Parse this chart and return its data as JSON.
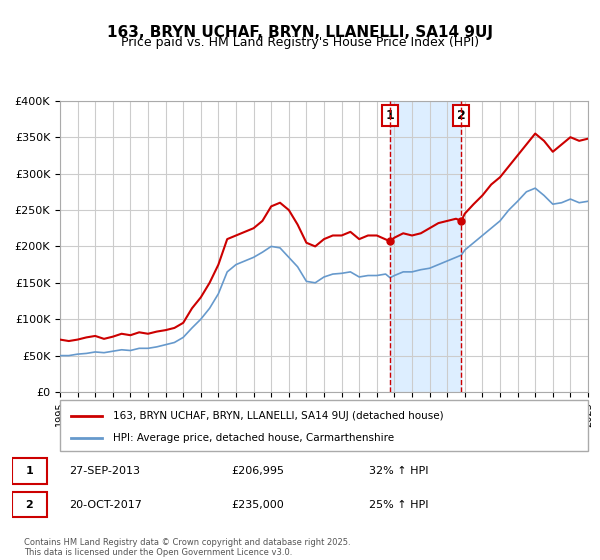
{
  "title": "163, BRYN UCHAF, BRYN, LLANELLI, SA14 9UJ",
  "subtitle": "Price paid vs. HM Land Registry's House Price Index (HPI)",
  "legend_label_red": "163, BRYN UCHAF, BRYN, LLANELLI, SA14 9UJ (detached house)",
  "legend_label_blue": "HPI: Average price, detached house, Carmarthenshire",
  "annotation1_label": "1",
  "annotation1_date": "27-SEP-2013",
  "annotation1_price": "£206,995",
  "annotation1_hpi": "32% ↑ HPI",
  "annotation2_label": "2",
  "annotation2_date": "20-OCT-2017",
  "annotation2_price": "£235,000",
  "annotation2_hpi": "25% ↑ HPI",
  "footnote": "Contains HM Land Registry data © Crown copyright and database right 2025.\nThis data is licensed under the Open Government Licence v3.0.",
  "xmin": 1995,
  "xmax": 2025,
  "ymin": 0,
  "ymax": 400000,
  "vline1_x": 2013.75,
  "vline2_x": 2017.8,
  "highlight_xmin": 2013.75,
  "highlight_xmax": 2017.8,
  "red_color": "#cc0000",
  "blue_color": "#6699cc",
  "highlight_color": "#ddeeff",
  "grid_color": "#cccccc",
  "background_color": "#ffffff",
  "red_data_x": [
    1995.0,
    1995.5,
    1996.0,
    1996.5,
    1997.0,
    1997.5,
    1998.0,
    1998.5,
    1999.0,
    1999.5,
    2000.0,
    2000.5,
    2001.0,
    2001.5,
    2002.0,
    2002.5,
    2003.0,
    2003.5,
    2004.0,
    2004.5,
    2005.0,
    2005.5,
    2006.0,
    2006.5,
    2007.0,
    2007.5,
    2008.0,
    2008.5,
    2009.0,
    2009.5,
    2010.0,
    2010.5,
    2011.0,
    2011.5,
    2012.0,
    2012.5,
    2013.0,
    2013.75,
    2014.0,
    2014.5,
    2015.0,
    2015.5,
    2016.0,
    2016.5,
    2017.0,
    2017.5,
    2017.8,
    2018.0,
    2018.5,
    2019.0,
    2019.5,
    2020.0,
    2020.5,
    2021.0,
    2021.5,
    2022.0,
    2022.5,
    2023.0,
    2023.5,
    2024.0,
    2024.5,
    2025.0
  ],
  "red_data_y": [
    72000,
    70000,
    72000,
    75000,
    77000,
    73000,
    76000,
    80000,
    78000,
    82000,
    80000,
    83000,
    85000,
    88000,
    95000,
    115000,
    130000,
    150000,
    175000,
    210000,
    215000,
    220000,
    225000,
    235000,
    255000,
    260000,
    250000,
    230000,
    205000,
    200000,
    210000,
    215000,
    215000,
    220000,
    210000,
    215000,
    215000,
    206995,
    212000,
    218000,
    215000,
    218000,
    225000,
    232000,
    235000,
    238000,
    235000,
    245000,
    258000,
    270000,
    285000,
    295000,
    310000,
    325000,
    340000,
    355000,
    345000,
    330000,
    340000,
    350000,
    345000,
    348000
  ],
  "blue_data_x": [
    1995.0,
    1995.5,
    1996.0,
    1996.5,
    1997.0,
    1997.5,
    1998.0,
    1998.5,
    1999.0,
    1999.5,
    2000.0,
    2000.5,
    2001.0,
    2001.5,
    2002.0,
    2002.5,
    2003.0,
    2003.5,
    2004.0,
    2004.5,
    2005.0,
    2005.5,
    2006.0,
    2006.5,
    2007.0,
    2007.5,
    2008.0,
    2008.5,
    2009.0,
    2009.5,
    2010.0,
    2010.5,
    2011.0,
    2011.5,
    2012.0,
    2012.5,
    2013.0,
    2013.5,
    2013.75,
    2014.0,
    2014.5,
    2015.0,
    2015.5,
    2016.0,
    2016.5,
    2017.0,
    2017.5,
    2017.8,
    2018.0,
    2018.5,
    2019.0,
    2019.5,
    2020.0,
    2020.5,
    2021.0,
    2021.5,
    2022.0,
    2022.5,
    2023.0,
    2023.5,
    2024.0,
    2024.5,
    2025.0
  ],
  "blue_data_y": [
    50000,
    50000,
    52000,
    53000,
    55000,
    54000,
    56000,
    58000,
    57000,
    60000,
    60000,
    62000,
    65000,
    68000,
    75000,
    88000,
    100000,
    115000,
    135000,
    165000,
    175000,
    180000,
    185000,
    192000,
    200000,
    198000,
    185000,
    172000,
    152000,
    150000,
    158000,
    162000,
    163000,
    165000,
    158000,
    160000,
    160000,
    162000,
    157000,
    160000,
    165000,
    165000,
    168000,
    170000,
    175000,
    180000,
    185000,
    188000,
    195000,
    205000,
    215000,
    225000,
    235000,
    250000,
    262000,
    275000,
    280000,
    270000,
    258000,
    260000,
    265000,
    260000,
    262000
  ]
}
